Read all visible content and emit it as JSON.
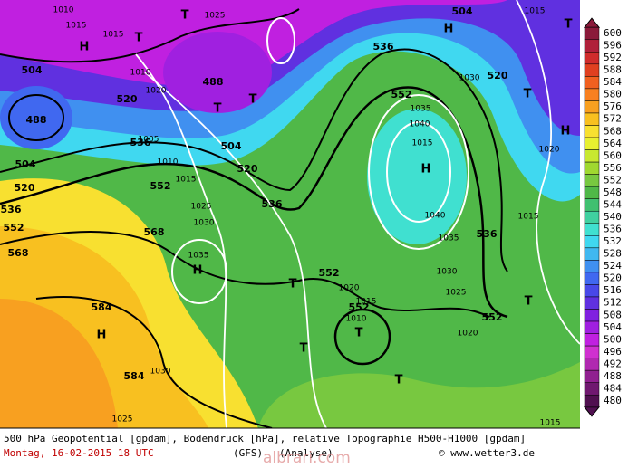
{
  "map": {
    "geopotential_labels": [
      "504",
      "488",
      "504",
      "520",
      "536",
      "552",
      "568",
      "520",
      "536",
      "552",
      "568",
      "584",
      "584",
      "488",
      "504",
      "520",
      "536",
      "536",
      "552",
      "520",
      "536",
      "552",
      "552",
      "552",
      "504"
    ],
    "pressure_labels": [
      "1010",
      "1015",
      "1015",
      "1025",
      "1010",
      "1020",
      "1005",
      "1010",
      "1015",
      "1025",
      "1030",
      "1035",
      "1020",
      "1015",
      "1010",
      "1035",
      "1040",
      "1015",
      "1040",
      "1035",
      "1030",
      "1025",
      "1020",
      "1015",
      "1020",
      "1015",
      "1030",
      "1025",
      "1015",
      "1030"
    ],
    "symbols": [
      "H",
      "T",
      "T",
      "H",
      "T",
      "H",
      "T",
      "T",
      "T",
      "H",
      "H",
      "T",
      "T",
      "T",
      "T",
      "T",
      "H"
    ]
  },
  "legend": {
    "ticks": [
      600,
      596,
      592,
      588,
      584,
      580,
      576,
      572,
      568,
      564,
      560,
      556,
      552,
      548,
      544,
      540,
      536,
      532,
      528,
      524,
      520,
      516,
      512,
      508,
      504,
      500,
      496,
      492,
      488,
      484,
      480
    ],
    "colors": [
      "#8b1a3a",
      "#b0203a",
      "#d02c2c",
      "#e04020",
      "#f06020",
      "#f88020",
      "#f8a020",
      "#f8c020",
      "#f8e030",
      "#e8f030",
      "#c8e830",
      "#a0d830",
      "#78c840",
      "#50b848",
      "#40c070",
      "#40d0a0",
      "#40e0d0",
      "#40d8f0",
      "#40b8f0",
      "#4090f0",
      "#4068f0",
      "#4848e8",
      "#6030e0",
      "#8020e0",
      "#a020e0",
      "#c020e0",
      "#d030d0",
      "#b028b0",
      "#902090",
      "#701870",
      "#501050"
    ]
  },
  "footer": {
    "description": "500 hPa Geopotential [gpdam], Bodendruck [hPa], relative Topographie H500-H1000 [gpdam]",
    "date": "Montag, 16-02-2015  18 UTC",
    "model": "(GFS)",
    "run": "(Analyse)",
    "copyright": "© www.wetter3.de",
    "watermark": "albrari.com"
  }
}
